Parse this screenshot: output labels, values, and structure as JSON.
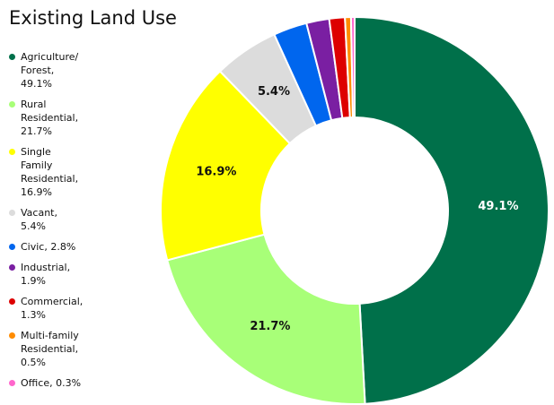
{
  "chart_data": {
    "type": "pie",
    "title": "Existing Land Use",
    "categories": [
      "Agriculture/\nForest,\n49.1%",
      "Rural\nResidential,\n21.7%",
      "Single\nFamily\nResidential,\n16.9%",
      "Vacant,\n5.4%",
      "Civic, 2.8%",
      "Industrial,\n1.9%",
      "Commercial,\n1.3%",
      "Multi-family\nResidential,\n0.5%",
      "Office, 0.3%"
    ],
    "values": [
      49.1,
      21.7,
      16.9,
      5.4,
      2.8,
      1.9,
      1.3,
      0.5,
      0.3
    ],
    "data_labels": [
      "49.1%",
      "21.7%",
      "16.9%",
      "5.4%",
      "",
      "",
      "",
      "",
      ""
    ],
    "colors": [
      "#00704A",
      "#A8FF78",
      "#FFFF00",
      "#DCDCDC",
      "#0066EE",
      "#7A1FA2",
      "#DD0000",
      "#FF8C00",
      "#FF66CC"
    ],
    "label_colors": [
      "#ffffff",
      "#111111",
      "#111111",
      "#111111",
      "#111111",
      "#111111",
      "#111111",
      "#111111",
      "#111111"
    ],
    "hole": "donut",
    "legend_position": "left"
  }
}
